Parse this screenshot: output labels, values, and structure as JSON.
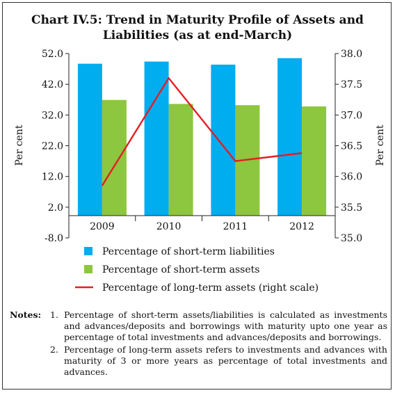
{
  "chart_data": {
    "type": "bar",
    "title_line1": "Chart IV.5: Trend in Maturity Profile of Assets and",
    "title_line2": "Liabilities (as at end-March)",
    "categories": [
      "2009",
      "2010",
      "2011",
      "2012"
    ],
    "series": [
      {
        "name": "Percentage of short-term liabilities",
        "type": "bar",
        "axis": "left",
        "color": "#00adef",
        "values": [
          48.7,
          49.4,
          48.4,
          50.5
        ]
      },
      {
        "name": "Percentage of short-term assets",
        "type": "bar",
        "axis": "left",
        "color": "#8dc63f",
        "values": [
          36.9,
          35.6,
          35.2,
          34.8
        ]
      },
      {
        "name": "Percentage of long-term assets (right scale)",
        "type": "line",
        "axis": "right",
        "color": "#e31e24",
        "values": [
          35.85,
          37.6,
          36.25,
          36.38
        ]
      }
    ],
    "left_axis": {
      "label": "Per cent",
      "ylim": [
        -8.0,
        52.0
      ],
      "ticks": [
        "52.0",
        "42.0",
        "32.0",
        "22.0",
        "12.0",
        "2.0",
        "-8.0"
      ],
      "tick_values": [
        52,
        42,
        32,
        22,
        12,
        2,
        -8
      ]
    },
    "right_axis": {
      "label": "Per cent",
      "ylim": [
        35.0,
        38.0
      ],
      "ticks": [
        "38.0",
        "37.5",
        "37.0",
        "36.5",
        "36.0",
        "35.5",
        "35.0"
      ],
      "tick_values": [
        38.0,
        37.5,
        37.0,
        36.5,
        36.0,
        35.5,
        35.0
      ]
    },
    "legend_placement": "bottom"
  },
  "notes": {
    "heading": "Notes:",
    "items": [
      {
        "num": "1.",
        "text": "Percentage of short-term assets/liabilities is calculated as investments and advances/deposits and borrowings with maturity upto one year as percentage of total investments and advances/deposits and borrowings."
      },
      {
        "num": "2.",
        "text": "Percentage of long-term assets refers to investments and advances with maturity of 3 or more years as percentage of total investments and advances."
      }
    ]
  }
}
